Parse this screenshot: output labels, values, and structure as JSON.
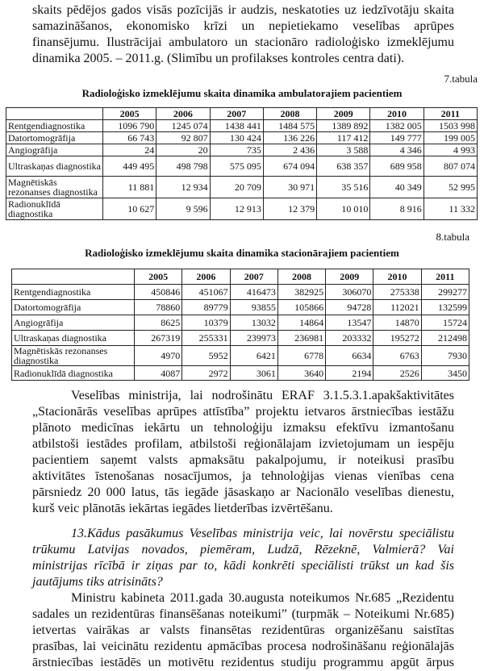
{
  "intro": {
    "lines": [
      "skaits pēdējos gados visās pozīcijās ir audzis, neskatoties uz iedzīvotāju skaita",
      "samazināšanos, ekonomisko krīzi un nepietiekamo veselības aprūpes",
      "finansējumu. Ilustrācijai ambulatoro un stacionāro radioloģisko izmeklējumu",
      "dinamika  2005. – 2011.g. (Slimību un profilakses kontroles centra dati)."
    ]
  },
  "table7": {
    "number": "7.tabula",
    "title": "Radioloģisko izmeklējumu skaita dinamika ambulatorajiem pacientiem",
    "headers": [
      "",
      "2005",
      "2006",
      "2007",
      "2008",
      "2009",
      "2010",
      "2011"
    ],
    "rows": [
      [
        "Rentgendiagnostika",
        "1096 790",
        "1245 074",
        "1438 441",
        "1484 575",
        "1389 892",
        "1382 005",
        "1503 998"
      ],
      [
        "Datortomogrāfija",
        "66 743",
        "92 807",
        "130 424",
        "136 226",
        "117 412",
        "149 777",
        "199 005"
      ],
      [
        "Angiogrāfija",
        "24",
        "20",
        "735",
        "2 436",
        "3 588",
        "4 346",
        "4 993"
      ],
      [
        "Ultraskaņas diagnostika",
        "449 495",
        "498 798",
        "575 095",
        "674 094",
        "638 357",
        "689 958",
        "807 074"
      ],
      [
        "Magnētiskās rezonanses diagnostika",
        "11 881",
        "12 934",
        "20 709",
        "30 971",
        "35 516",
        "40 349",
        "52 995"
      ],
      [
        "Radionuklīdā diagnostika",
        "10 627",
        "9 596",
        "12 913",
        "12 379",
        "10 010",
        "8 916",
        "11 332"
      ]
    ]
  },
  "table8": {
    "number": "8.tabula",
    "title": "Radioloģisko izmeklējumu skaita dinamika stacionārajiem pacientiem",
    "headers": [
      "",
      "2005",
      "2006",
      "2007",
      "2008",
      "2009",
      "2010",
      "2011"
    ],
    "rows": [
      [
        "Rentgendiagnostika",
        "450846",
        "451067",
        "416473",
        "382925",
        "306070",
        "275338",
        "299277"
      ],
      [
        "Datortomogrāfija",
        "78860",
        "89779",
        "93855",
        "105866",
        "94728",
        "112021",
        "132599"
      ],
      [
        "Angiogrāfija",
        "8625",
        "10379",
        "13032",
        "14864",
        "13547",
        "14870",
        "15724"
      ],
      [
        "Ultraskaņas diagnostika",
        "267319",
        "255331",
        "239973",
        "236981",
        "203332",
        "195272",
        "212498"
      ],
      [
        "Magnētiskās rezonanses diagnostika",
        "4970",
        "5952",
        "6421",
        "6778",
        "6634",
        "6763",
        "7930"
      ],
      [
        "Radionuklīdā diagnostika",
        "4087",
        "2972",
        "3061",
        "3640",
        "2194",
        "2526",
        "3450"
      ]
    ]
  },
  "paragraph2": {
    "lines": [
      "Veselības ministrija, lai nodrošinātu ERAF 3.1.5.3.1.apakšaktivitātes",
      "„Stacionārās veselības aprūpes attīstība” projektu ietvaros ārstniecības iestāžu",
      "plānoto medicīnas iekārtu un tehnoloģiju izmaksu efektīvu izmantošanu",
      "atbilstoši iestādes profilam, atbilstoši reģionālajam izvietojumam un iespēju",
      "pacientiem saņemt valsts apmaksātu pakalpojumu, ir noteikusi prasību",
      "aktivitātes īstenošanas nosacījumos, ja tehnoloģijas vienas vienības cena",
      "pārsniedz 20 000 latus, tās iegāde jāsaskaņo ar Nacionālo veselības dienestu,",
      "kurš veic plānotās iekārtas iegādes lietderības izvērtēšanu."
    ]
  },
  "question": {
    "lines": [
      "13.Kādus pasākumus Veselības ministrija veic, lai novērstu speciālistu",
      "trūkumu Latvijas novados, piemēram, Ludzā, Rēzeknē, Valmierā? Vai",
      "ministrijas rīcībā ir ziņas par to, kādi konkrēti speciālisti trūkst un kad šis",
      "jautājums tiks atrisināts?"
    ]
  },
  "answer": {
    "lines": [
      "Ministru kabineta 2011.gada 30.augusta noteikumos Nr.685 „Rezidentu",
      "sadales un rezidentūras finansēšanas noteikumi” (turpmāk – Noteikumi Nr.685)",
      "ietvertas vairākas ar valsts finansētas rezidentūras organizēšanu saistītas",
      "prasības, lai veicinātu rezidentu apmācības procesa nodrošināšanu reģionālajās",
      "ārstniecības iestādēs un motivētu rezidentus studiju programmu apgūt ārpus"
    ]
  }
}
